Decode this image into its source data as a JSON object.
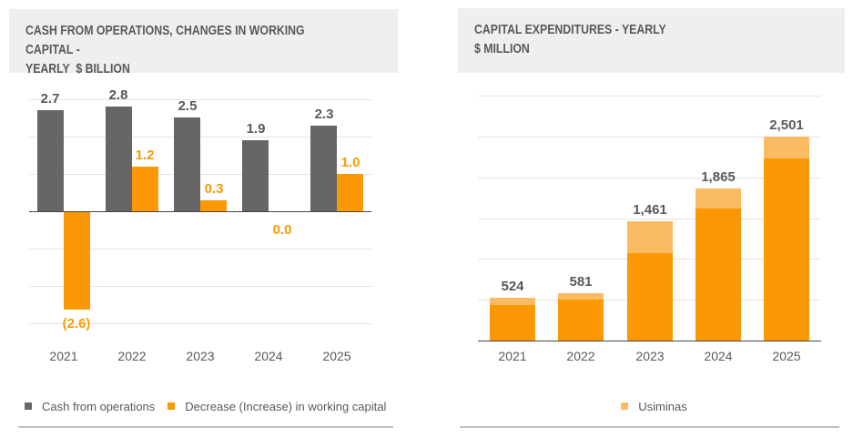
{
  "colors": {
    "bar_gray": "#666666",
    "accent_orange": "#FB9804",
    "accent_light_orange": "#FABB62",
    "label_gray": "#595959",
    "title_bg": "#F0EFEF",
    "gridline": "#E4E4E4",
    "divider": "#BFBFBF"
  },
  "chart_data": [
    {
      "type": "bar",
      "title": "CASH FROM OPERATIONS, CHANGES IN WORKING CAPITAL -\nYEARLY  $ BILLION",
      "categories": [
        "2021",
        "2022",
        "2023",
        "2024",
        "2025"
      ],
      "series": [
        {
          "name": "Cash from operations",
          "values": [
            2.7,
            2.8,
            2.5,
            1.9,
            2.3
          ],
          "labels": [
            "2.7",
            "2.8",
            "2.5",
            "1.9",
            "2.3"
          ],
          "color": "#666666"
        },
        {
          "name": "Decrease (Increase) in working capital",
          "values": [
            -2.6,
            1.2,
            0.3,
            0.0,
            1.0
          ],
          "labels": [
            "(2.6)",
            "1.2",
            "0.3",
            "0.0",
            "1.0"
          ],
          "color": "#FB9804"
        }
      ],
      "ylim": [
        -3,
        3
      ],
      "gridlines": [
        3,
        2,
        1,
        -1,
        -2,
        -3
      ],
      "grid": true,
      "legend_position": "bottom"
    },
    {
      "type": "bar",
      "stacked": true,
      "title": "CAPITAL EXPENDITURES - YEARLY\n$ MILLION",
      "categories": [
        "2021",
        "2022",
        "2023",
        "2024",
        "2025"
      ],
      "series": [
        {
          "name": "(not in legend)",
          "values": [
            434,
            506,
            1071,
            1620,
            2231
          ],
          "estimated": true,
          "color": "#FB9804"
        },
        {
          "name": "Usiminas",
          "values": [
            90,
            75,
            390,
            245,
            270
          ],
          "estimated": true,
          "color": "#FABB62"
        }
      ],
      "totals": [
        524,
        581,
        1461,
        1865,
        2501
      ],
      "total_labels": [
        "524",
        "581",
        "1,461",
        "1,865",
        "2,501"
      ],
      "ylim": [
        0,
        3000
      ],
      "gridline_step": 500,
      "grid": true,
      "legend_position": "bottom"
    }
  ]
}
